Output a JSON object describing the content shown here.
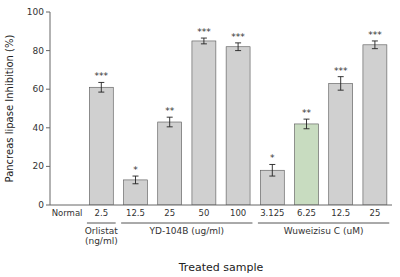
{
  "chart_data": {
    "type": "bar",
    "categories": [
      "Normal",
      "2.5",
      "12.5",
      "25",
      "50",
      "100",
      "3.125",
      "6.25",
      "12.5",
      "25"
    ],
    "values": [
      0,
      61,
      13,
      43,
      85,
      82,
      18,
      42,
      63,
      83
    ],
    "errors": [
      0,
      2.5,
      2.0,
      2.5,
      1.5,
      2.0,
      3.0,
      2.5,
      3.5,
      2.0
    ],
    "colors": [
      "#d8d8d8",
      "#d0d0d0",
      "#d0d0d0",
      "#d0d0d0",
      "#d0d0d0",
      "#d0d0d0",
      "#d0d0d0",
      "#c8dcc0",
      "#d0d0d0",
      "#d0d0d0"
    ],
    "significance": [
      null,
      "***",
      "*",
      "**",
      "***",
      "***",
      "*",
      "**",
      "***",
      "***"
    ],
    "groups": [
      {
        "label": "Orlistat\n(ng/ml)",
        "categories": [
          "2.5"
        ]
      },
      {
        "label": "YD-104B (ug/ml)",
        "categories": [
          "12.5",
          "25",
          "50",
          "100"
        ]
      },
      {
        "label": "Wuweizisu C (uM)",
        "categories": [
          "3.125",
          "6.25",
          "12.5",
          "25"
        ]
      }
    ],
    "ylabel": "Pancreas lipase Inhibition (%)",
    "xlabel": "Treated sample",
    "ylim": [
      0,
      100
    ],
    "yticks": [
      0,
      20,
      40,
      60,
      80,
      100
    ],
    "grid": false
  }
}
